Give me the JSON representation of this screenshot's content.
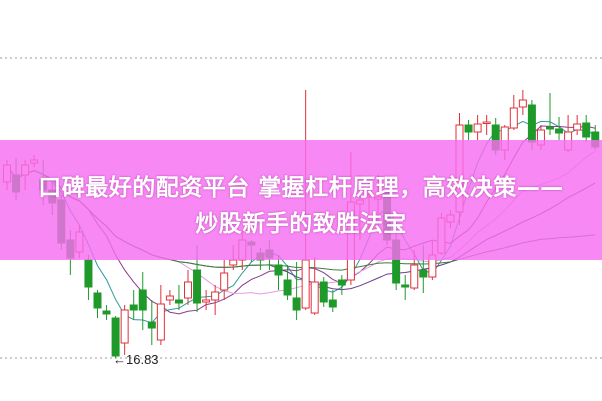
{
  "banner": {
    "line1": "口碑最好的配资平台 掌握杠杆原理，高效决策——",
    "line2": "炒股新手的致胜法宝"
  },
  "chart_data": {
    "type": "candlestick",
    "title": "",
    "ylim": [
      16.83,
      19.83
    ],
    "grid": "dotted top and bottom lines",
    "up_color": "#e0303a",
    "down_color": "#1f9a2a",
    "banner_color": "#f66ef0",
    "annotations": [
      {
        "text": "←16.83",
        "value": 16.83
      }
    ],
    "ohlc": [
      [
        18.59,
        18.81,
        18.51,
        18.76
      ],
      [
        18.66,
        18.83,
        18.41,
        18.49
      ],
      [
        18.66,
        18.81,
        18.51,
        18.76
      ],
      [
        18.78,
        18.86,
        18.74,
        18.81
      ],
      [
        18.61,
        18.81,
        18.36,
        18.51
      ],
      [
        18.51,
        18.61,
        18.26,
        18.38
      ],
      [
        18.41,
        18.46,
        17.91,
        17.98
      ],
      [
        18.01,
        18.11,
        17.66,
        17.83
      ],
      [
        17.89,
        18.16,
        17.83,
        18.09
      ],
      [
        17.81,
        17.86,
        17.41,
        17.54
      ],
      [
        17.48,
        17.51,
        17.23,
        17.33
      ],
      [
        17.3,
        17.36,
        17.21,
        17.27
      ],
      [
        17.23,
        17.25,
        16.83,
        16.85
      ],
      [
        16.98,
        17.36,
        16.86,
        17.31
      ],
      [
        17.36,
        17.51,
        17.21,
        17.31
      ],
      [
        17.51,
        17.69,
        17.11,
        17.31
      ],
      [
        17.19,
        17.41,
        16.96,
        17.13
      ],
      [
        17.01,
        17.56,
        16.96,
        17.37
      ],
      [
        17.41,
        17.51,
        17.36,
        17.45
      ],
      [
        17.41,
        17.56,
        17.31,
        17.38
      ],
      [
        17.43,
        17.71,
        17.36,
        17.59
      ],
      [
        17.71,
        17.96,
        17.29,
        17.38
      ],
      [
        17.39,
        17.51,
        17.31,
        17.41
      ],
      [
        17.41,
        17.56,
        17.26,
        17.49
      ],
      [
        17.51,
        17.81,
        17.41,
        17.68
      ],
      [
        17.76,
        17.96,
        17.71,
        17.81
      ],
      [
        17.81,
        18.11,
        17.71,
        18.01
      ],
      [
        17.99,
        18.01,
        17.79,
        17.96
      ],
      [
        17.88,
        17.93,
        17.71,
        17.81
      ],
      [
        17.91,
        18.01,
        17.71,
        17.83
      ],
      [
        17.76,
        17.86,
        17.51,
        17.66
      ],
      [
        17.61,
        17.76,
        17.41,
        17.46
      ],
      [
        17.43,
        17.79,
        17.21,
        17.31
      ],
      [
        17.33,
        19.51,
        17.31,
        17.81
      ],
      [
        17.28,
        17.84,
        17.26,
        17.59
      ],
      [
        17.59,
        17.64,
        17.34,
        17.39
      ],
      [
        17.41,
        17.51,
        17.29,
        17.34
      ],
      [
        17.61,
        17.66,
        17.46,
        17.56
      ],
      [
        17.61,
        18.89,
        17.56,
        18.39
      ],
      [
        18.37,
        18.66,
        18.01,
        18.41
      ],
      [
        18.44,
        18.61,
        18.11,
        18.46
      ],
      [
        18.42,
        18.66,
        18.11,
        18.44
      ],
      [
        18.49,
        18.51,
        17.96,
        18.01
      ],
      [
        18.01,
        18.08,
        17.51,
        17.58
      ],
      [
        17.56,
        17.66,
        17.41,
        17.54
      ],
      [
        17.53,
        17.91,
        17.51,
        17.76
      ],
      [
        17.71,
        17.96,
        17.48,
        17.64
      ],
      [
        17.64,
        18.01,
        17.61,
        17.86
      ],
      [
        17.88,
        18.28,
        17.86,
        18.23
      ],
      [
        18.19,
        18.31,
        18.13,
        18.26
      ],
      [
        18.29,
        19.28,
        18.16,
        19.16
      ],
      [
        19.16,
        19.21,
        19.01,
        19.09
      ],
      [
        19.09,
        19.26,
        19.01,
        19.17
      ],
      [
        19.18,
        19.26,
        19.06,
        19.19
      ],
      [
        19.16,
        19.23,
        18.86,
        18.91
      ],
      [
        18.91,
        19.16,
        18.81,
        19.14
      ],
      [
        19.13,
        19.46,
        19.11,
        19.33
      ],
      [
        19.34,
        19.51,
        19.26,
        19.41
      ],
      [
        19.36,
        19.41,
        18.91,
        18.99
      ],
      [
        18.96,
        19.16,
        18.91,
        19.11
      ],
      [
        19.14,
        19.48,
        19.06,
        19.12
      ],
      [
        19.12,
        19.24,
        19.01,
        19.08
      ],
      [
        18.91,
        19.26,
        18.89,
        19.09
      ],
      [
        19.11,
        19.26,
        19.06,
        19.17
      ],
      [
        19.18,
        19.26,
        18.99,
        19.04
      ],
      [
        19.09,
        19.16,
        18.91,
        18.94
      ]
    ]
  }
}
